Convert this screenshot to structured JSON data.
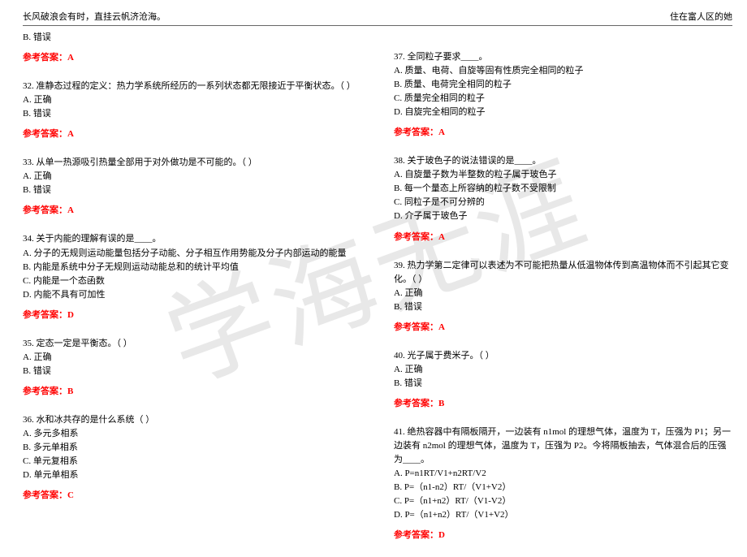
{
  "header": {
    "left": "长风破浪会有时，直挂云帆济沧海。",
    "right": "住在富人区的她"
  },
  "watermark": "学海无涯",
  "answer_label_prefix": "参考答案：",
  "left_col": {
    "prev_option": "B. 错误",
    "prev_answer": "A",
    "questions": [
      {
        "stem": "32. 准静态过程的定义：热力学系统所经历的一系列状态都无限接近于平衡状态。（ ）",
        "options": [
          "A. 正确",
          "B. 错误"
        ],
        "answer": "A"
      },
      {
        "stem": "33. 从单一热源吸引热量全部用于对外做功是不可能的。（ ）",
        "options": [
          "A. 正确",
          "B. 错误"
        ],
        "answer": "A"
      },
      {
        "stem": "34. 关于内能的理解有误的是____。",
        "options": [
          "A. 分子的无规则运动能量包括分子动能、分子相互作用势能及分子内部运动的能量",
          "B. 内能是系统中分子无规则运动动能总和的统计平均值",
          "C. 内能是一个态函数",
          "D. 内能不具有可加性"
        ],
        "answer": "D"
      },
      {
        "stem": "35. 定态一定是平衡态。（ ）",
        "options": [
          "A. 正确",
          "B. 错误"
        ],
        "answer": "B"
      },
      {
        "stem": "36. 水和冰共存的是什么系统（ ）",
        "options": [
          "A. 多元多相系",
          "B. 多元单相系",
          "C. 单元复相系",
          "D. 单元单相系"
        ],
        "answer": "C"
      }
    ]
  },
  "right_col": {
    "questions": [
      {
        "stem": "37. 全同粒子要求____。",
        "options": [
          "A. 质量、电荷、自旋等固有性质完全相同的粒子",
          "B. 质量、电荷完全相同的粒子",
          "C. 质量完全相同的粒子",
          "D. 自旋完全相同的粒子"
        ],
        "answer": "A"
      },
      {
        "stem": "38. 关于玻色子的说法错误的是____。",
        "options": [
          "A. 自旋量子数为半整数的粒子属于玻色子",
          "B. 每一个量态上所容纳的粒子数不受限制",
          "C. 同粒子是不可分辨的",
          "D. 介子属于玻色子"
        ],
        "answer": "A"
      },
      {
        "stem": "39. 热力学第二定律可以表述为不可能把热量从低温物体传到高温物体而不引起其它变化。（ ）",
        "options": [
          "A. 正确",
          "B. 错误"
        ],
        "answer": "A"
      },
      {
        "stem": "40. 光子属于费米子。（ ）",
        "options": [
          "A. 正确",
          "B. 错误"
        ],
        "answer": "B"
      },
      {
        "stem": "41. 绝热容器中有隔板隔开，一边装有 n1mol 的理想气体，温度为 T，压强为 P1；另一边装有 n2mol 的理想气体，温度为 T，压强为 P2。今将隔板抽去，气体混合后的压强为____。",
        "options": [
          "A. P=n1RT/V1+n2RT/V2",
          "B. P=（n1-n2）RT/（V1+V2）",
          "C. P=（n1+n2）RT/（V1-V2）",
          "D. P=（n1+n2）RT/（V1+V2）"
        ],
        "answer": "D"
      }
    ]
  }
}
